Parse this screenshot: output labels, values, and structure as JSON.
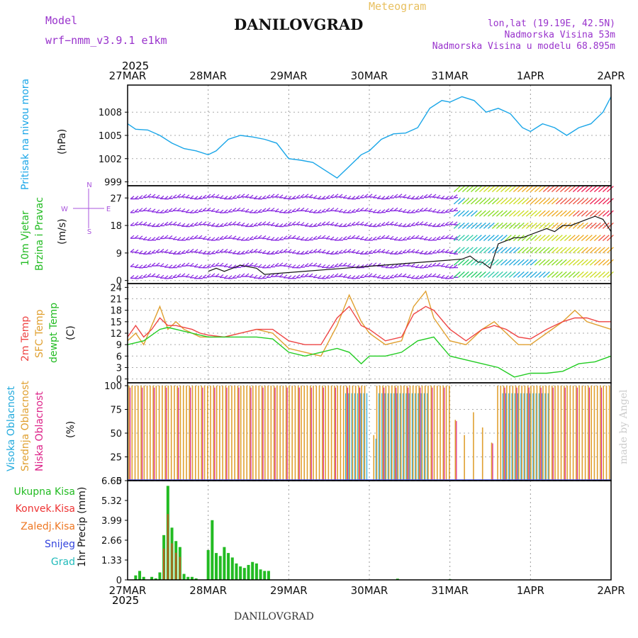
{
  "header": {
    "model_label": "Model",
    "model_name": "wrf−nmm_v3.9.1 e1km",
    "title": "DANILOVGRAD",
    "subtitle": "Meteogram",
    "lonlat": "lon,lat (19.19E, 42.5N)",
    "elev": "Nadmorska Visina 53m",
    "elev_model": "Nadmorska Visina u modelu 68.895m",
    "footer": "DANILOVGRAD",
    "watermark": "made by Angel",
    "year": "2025"
  },
  "colors": {
    "pressure": "#1aa6e8",
    "wind": "#22cc22",
    "temp2m": "#ee4444",
    "sfc": "#e0a030",
    "dewpt": "#22cc22",
    "high_cloud": "#22aadd",
    "mid_cloud": "#e0a030",
    "low_cloud": "#dd2288",
    "barb_purple": "#8a2be2"
  },
  "x_axis": {
    "labels": [
      "27MAR",
      "28MAR",
      "29MAR",
      "30MAR",
      "31MAR",
      "1APR",
      "2APR"
    ]
  },
  "panels": {
    "pressure": {
      "label": "Pritisak na nivou mora",
      "unit": "(hPa)",
      "ticks": [
        "999",
        "1002",
        "1005",
        "1008"
      ]
    },
    "wind": {
      "label1": "10m Vjetar",
      "label2": "Brzina i Pravac",
      "unit": "(m/s)",
      "ticks": [
        "0",
        "9",
        "18",
        "27"
      ],
      "compass": {
        "n": "N",
        "s": "S",
        "e": "E",
        "w": "W"
      }
    },
    "temp": {
      "label1": "2m Temp",
      "label2": "SFC Temp",
      "label3": "dewpt Temp",
      "unit": "(C)",
      "ticks": [
        "0",
        "3",
        "6",
        "9",
        "12",
        "15",
        "18",
        "21",
        "24"
      ]
    },
    "cloud": {
      "label1": "Visoka Oblacnost",
      "label2": "Srednja Oblacnost",
      "label3": "Niska Oblacnost",
      "unit": "(%)",
      "ticks": [
        "0",
        "25",
        "50",
        "75",
        "100"
      ]
    },
    "precip": {
      "unit": "1hr Precip (mm)",
      "ticks": [
        "0",
        "1.33",
        "2.66",
        "3.99",
        "5.32",
        "6.65"
      ],
      "legend": [
        "Ukupna Kisa",
        "Konvek.Kisa",
        "Zaledj.Kisa",
        "Snijeg",
        "Grad"
      ],
      "legend_colors": [
        "#22bb22",
        "#ee3333",
        "#ee7722",
        "#3344dd",
        "#22bbbb"
      ]
    }
  },
  "chart_data": [
    {
      "type": "line",
      "name": "pressure",
      "x_unit": "days since 27MAR 00Z",
      "ylim": [
        999,
        1011
      ],
      "x": [
        0,
        0.1,
        0.25,
        0.4,
        0.55,
        0.7,
        0.85,
        1.0,
        1.1,
        1.25,
        1.4,
        1.55,
        1.7,
        1.85,
        2.0,
        2.15,
        2.3,
        2.45,
        2.6,
        2.75,
        2.9,
        3.0,
        3.15,
        3.3,
        3.45,
        3.6,
        3.75,
        3.9,
        4.0,
        4.15,
        4.3,
        4.45,
        4.6,
        4.75,
        4.9,
        5.0,
        5.15,
        5.3,
        5.45,
        5.6,
        5.75,
        5.9,
        6.0
      ],
      "values": [
        1006.5,
        1005.8,
        1005.7,
        1005.0,
        1004.0,
        1003.3,
        1003.0,
        1002.5,
        1003.0,
        1004.5,
        1005.0,
        1004.8,
        1004.5,
        1004.0,
        1002.0,
        1001.8,
        1001.5,
        1000.5,
        999.5,
        1001.0,
        1002.5,
        1003.0,
        1004.5,
        1005.2,
        1005.3,
        1006.0,
        1008.5,
        1009.5,
        1009.3,
        1010.0,
        1009.5,
        1008.0,
        1008.5,
        1007.8,
        1006.0,
        1005.5,
        1006.5,
        1006.0,
        1005.0,
        1006.0,
        1006.5,
        1008.0,
        1010.0
      ]
    },
    {
      "type": "line",
      "name": "wind_speed",
      "ylim": [
        0,
        31
      ],
      "x": [
        1.0,
        1.1,
        1.2,
        1.3,
        1.4,
        1.5,
        1.6,
        1.7,
        4.15,
        4.25,
        4.35,
        4.4,
        4.5,
        4.6,
        4.7,
        4.8,
        4.9,
        5.0,
        5.1,
        5.2,
        5.3,
        5.4,
        5.5,
        5.6,
        5.7,
        5.8,
        5.9,
        6.0
      ],
      "values": [
        3,
        4,
        3,
        4,
        5,
        4.5,
        4,
        2,
        7,
        8,
        6,
        6,
        4,
        12,
        13,
        14,
        14,
        15,
        16,
        17,
        16,
        18,
        18,
        19,
        20,
        21,
        20,
        16
      ]
    },
    {
      "type": "line",
      "name": "temp_2m",
      "ylim": [
        -1,
        25
      ],
      "x": [
        0,
        0.1,
        0.2,
        0.3,
        0.4,
        0.5,
        0.6,
        0.7,
        0.8,
        0.9,
        1.0,
        1.2,
        1.4,
        1.6,
        1.8,
        2.0,
        2.2,
        2.4,
        2.6,
        2.75,
        2.9,
        3.0,
        3.2,
        3.4,
        3.55,
        3.7,
        3.8,
        4.0,
        4.2,
        4.4,
        4.55,
        4.7,
        4.85,
        5.0,
        5.2,
        5.4,
        5.55,
        5.7,
        5.85,
        6.0
      ],
      "values": [
        11,
        14,
        11,
        13,
        16,
        14,
        14,
        13.5,
        13,
        12,
        11.5,
        11,
        12,
        13,
        13,
        10,
        9,
        9,
        16,
        19,
        14,
        13,
        10,
        11,
        17,
        19,
        18,
        13,
        10,
        13,
        14,
        13,
        11,
        10.5,
        13,
        15,
        16,
        16,
        15,
        15
      ]
    },
    {
      "type": "line",
      "name": "temp_sfc",
      "ylim": [
        -1,
        25
      ],
      "x": [
        0,
        0.1,
        0.2,
        0.3,
        0.4,
        0.5,
        0.6,
        0.7,
        0.8,
        0.9,
        1.0,
        1.2,
        1.4,
        1.6,
        1.8,
        2.0,
        2.2,
        2.4,
        2.6,
        2.75,
        2.9,
        3.0,
        3.2,
        3.4,
        3.55,
        3.7,
        3.8,
        4.0,
        4.2,
        4.4,
        4.55,
        4.7,
        4.85,
        5.0,
        5.2,
        5.4,
        5.55,
        5.7,
        5.85,
        6.0
      ],
      "values": [
        10,
        12,
        9,
        14,
        19,
        13,
        15,
        13,
        12,
        11,
        11,
        11,
        12,
        13,
        12,
        8,
        7,
        6,
        14,
        22,
        15,
        12,
        9,
        10,
        19,
        23,
        16,
        10,
        9,
        13,
        15,
        12,
        9,
        9,
        12,
        15,
        18,
        15,
        14,
        13
      ]
    },
    {
      "type": "line",
      "name": "dewpt",
      "ylim": [
        -1,
        25
      ],
      "x": [
        0,
        0.2,
        0.4,
        0.5,
        0.6,
        0.8,
        1.0,
        1.2,
        1.4,
        1.6,
        1.8,
        2.0,
        2.2,
        2.4,
        2.6,
        2.75,
        2.9,
        3.0,
        3.2,
        3.4,
        3.6,
        3.8,
        4.0,
        4.2,
        4.4,
        4.6,
        4.8,
        5.0,
        5.2,
        5.4,
        5.6,
        5.8,
        6.0
      ],
      "values": [
        9,
        10,
        13,
        13.5,
        13,
        12,
        11,
        11,
        11,
        11,
        10.5,
        7,
        6,
        7,
        8,
        7,
        4,
        6,
        6,
        7,
        10,
        11,
        6,
        5,
        4,
        3,
        0.5,
        1.5,
        1.5,
        2,
        4,
        4.5,
        6
      ]
    },
    {
      "type": "bar",
      "name": "precip",
      "ylim": [
        0,
        6.65
      ],
      "x": [
        0.1,
        0.15,
        0.2,
        0.3,
        0.35,
        0.4,
        0.45,
        0.5,
        0.55,
        0.6,
        0.65,
        0.7,
        0.75,
        0.8,
        0.85,
        1.0,
        1.05,
        1.1,
        1.15,
        1.2,
        1.25,
        1.3,
        1.35,
        1.4,
        1.45,
        1.5,
        1.55,
        1.6,
        1.65,
        1.7,
        1.75,
        4.0,
        3.35
      ],
      "values": [
        0.3,
        0.6,
        0.2,
        0.2,
        0.1,
        0.5,
        3.0,
        6.3,
        3.5,
        2.6,
        2.2,
        0.4,
        0.2,
        0.2,
        0.1,
        2.0,
        4.0,
        1.8,
        1.6,
        2.2,
        1.8,
        1.5,
        1.1,
        0.9,
        0.8,
        1.0,
        1.2,
        1.1,
        0.7,
        0.6,
        0.6,
        0.05,
        0.08
      ]
    }
  ]
}
